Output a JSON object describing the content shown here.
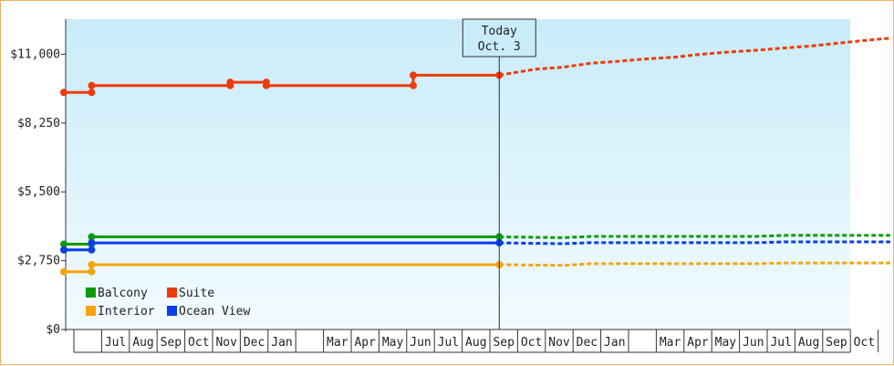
{
  "chart_data": {
    "type": "line",
    "title": "",
    "xlabel": "",
    "ylabel": "",
    "ylim": [
      0,
      12400
    ],
    "y_ticks": [
      0,
      2750,
      5500,
      8250,
      11000
    ],
    "y_tick_labels": [
      "$0",
      "$2,750",
      "$5,500",
      "$8,250",
      "$11,000"
    ],
    "x_month_labels": [
      "",
      "Jul",
      "Aug",
      "Sep",
      "Oct",
      "Nov",
      "Dec",
      "Jan",
      "",
      "Mar",
      "Apr",
      "May",
      "Jun",
      "Jul",
      "Aug",
      "Sep",
      "Oct",
      "Nov",
      "Dec",
      "Jan",
      "",
      "Mar",
      "Apr",
      "May",
      "Jun",
      "Jul",
      "Aug",
      "Sep",
      "Oct"
    ],
    "x_range_months": [
      0,
      29
    ],
    "today": {
      "label_line1": "Today",
      "label_line2": "Oct. 3",
      "x": 15.7
    },
    "legend": [
      {
        "name": "Balcony",
        "color": "#0e9a0e"
      },
      {
        "name": "Suite",
        "color": "#ee3b0c"
      },
      {
        "name": "Interior",
        "color": "#f5a40a"
      },
      {
        "name": "Ocean View",
        "color": "#0b3de8"
      }
    ],
    "series": [
      {
        "name": "Suite",
        "color": "#ee3b0c",
        "history": [
          [
            0,
            9470
          ],
          [
            1,
            9470
          ],
          [
            1,
            9750
          ],
          [
            6,
            9750
          ],
          [
            6,
            9880
          ],
          [
            7.3,
            9880
          ],
          [
            7.3,
            9750
          ],
          [
            12.6,
            9750
          ],
          [
            12.6,
            10160
          ],
          [
            15.7,
            10160
          ]
        ],
        "projection": [
          [
            15.7,
            10160
          ],
          [
            17,
            10400
          ],
          [
            18,
            10480
          ],
          [
            19,
            10640
          ],
          [
            20,
            10720
          ],
          [
            21,
            10810
          ],
          [
            22,
            10880
          ],
          [
            23,
            11000
          ],
          [
            24,
            11090
          ],
          [
            25,
            11160
          ],
          [
            26,
            11250
          ],
          [
            27,
            11330
          ],
          [
            28,
            11450
          ],
          [
            29,
            11560
          ],
          [
            29.8,
            11640
          ]
        ]
      },
      {
        "name": "Balcony",
        "color": "#0e9a0e",
        "history": [
          [
            0,
            3410
          ],
          [
            1,
            3410
          ],
          [
            1,
            3700
          ],
          [
            15.7,
            3700
          ]
        ],
        "projection": [
          [
            15.7,
            3700
          ],
          [
            18,
            3670
          ],
          [
            19,
            3720
          ],
          [
            25,
            3720
          ],
          [
            26,
            3760
          ],
          [
            29.8,
            3760
          ]
        ]
      },
      {
        "name": "Ocean View",
        "color": "#0b3de8",
        "history": [
          [
            0,
            3180
          ],
          [
            1,
            3180
          ],
          [
            1,
            3460
          ],
          [
            15.7,
            3460
          ]
        ],
        "projection": [
          [
            15.7,
            3460
          ],
          [
            18,
            3430
          ],
          [
            19,
            3470
          ],
          [
            25,
            3470
          ],
          [
            26,
            3500
          ],
          [
            29.8,
            3500
          ]
        ]
      },
      {
        "name": "Interior",
        "color": "#f5a40a",
        "history": [
          [
            0,
            2310
          ],
          [
            1,
            2310
          ],
          [
            1,
            2590
          ],
          [
            15.7,
            2590
          ]
        ],
        "projection": [
          [
            15.7,
            2590
          ],
          [
            18,
            2560
          ],
          [
            19,
            2630
          ],
          [
            25,
            2630
          ],
          [
            26,
            2660
          ],
          [
            29.8,
            2660
          ]
        ]
      }
    ]
  }
}
